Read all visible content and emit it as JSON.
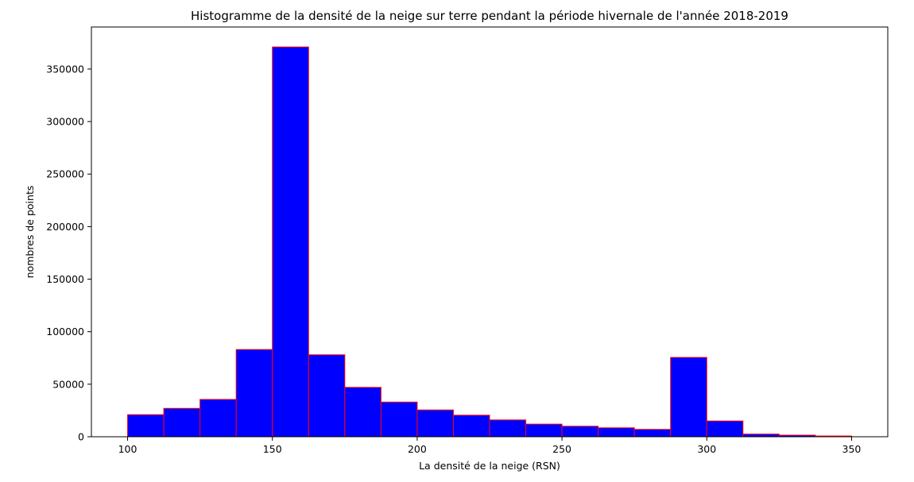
{
  "chart_data": {
    "type": "bar",
    "title": "Histogramme de la densité de la neige sur terre pendant la période hivernale de l'année 2018-2019",
    "xlabel": "La densité de la neige (RSN)",
    "ylabel": "nombres de points",
    "xlim": [
      87.5,
      362.5
    ],
    "ylim": [
      0,
      390000
    ],
    "xticks": [
      100,
      150,
      200,
      250,
      300,
      350
    ],
    "yticks": [
      0,
      50000,
      100000,
      150000,
      200000,
      250000,
      300000,
      350000
    ],
    "bin_edges": [
      100,
      112.5,
      125,
      137.5,
      150,
      162.5,
      175,
      187.5,
      200,
      212.5,
      225,
      237.5,
      250,
      262.5,
      275,
      287.5,
      300,
      312.5,
      325,
      337.5,
      350
    ],
    "values": [
      21000,
      27000,
      35500,
      83000,
      371000,
      78000,
      47000,
      33000,
      25500,
      20500,
      16000,
      12000,
      10000,
      8500,
      7000,
      75500,
      15000,
      2500,
      1500,
      700
    ],
    "grid": false,
    "colors": {
      "bar_fill": "#0000ff",
      "bar_edge": "#ff0000",
      "axes": "#000000",
      "background": "#ffffff"
    }
  }
}
